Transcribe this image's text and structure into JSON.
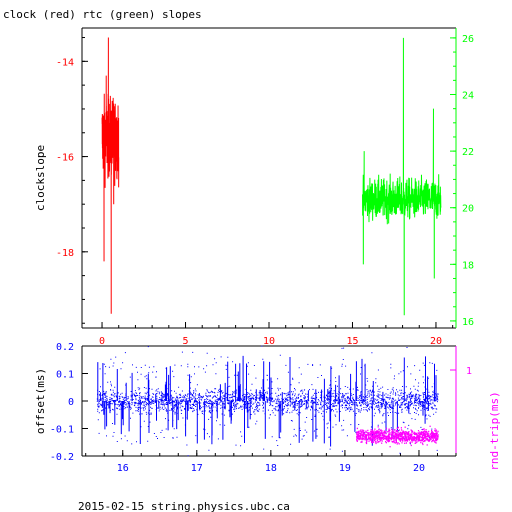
{
  "title": "clock (red) rtc (green) slopes",
  "footer": "2015-02-15 string.physics.ubc.ca",
  "colors": {
    "clock": "#ff0000",
    "rtc": "#00ff00",
    "offset": "#0000ff",
    "rndtrip": "#ff00ff",
    "frame": "#000000"
  },
  "chart_data": [
    {
      "type": "line",
      "title": "clock (red) rtc (green) slopes",
      "ylabel": "clockslope",
      "y2label": "",
      "xlim": [
        -1.2,
        21.2
      ],
      "ylim": [
        -19.6,
        -13.3
      ],
      "y2lim": [
        15.75,
        26.35
      ],
      "x_ticks": [
        "0",
        "5",
        "10",
        "15",
        "20"
      ],
      "y_ticks": [
        "-14",
        "-16",
        "-18"
      ],
      "y2_ticks": [
        "16",
        "18",
        "20",
        "22",
        "24",
        "26"
      ],
      "grid": false,
      "series": [
        {
          "name": "clock",
          "axis": "left",
          "x_range": [
            0.0,
            1.0
          ],
          "center": -15.6,
          "spread": 0.4,
          "spikes": [
            [
              0.12,
              -18.2
            ],
            [
              0.38,
              -13.5
            ],
            [
              0.55,
              -19.3
            ],
            [
              0.25,
              -14.3
            ],
            [
              0.7,
              -17.0
            ]
          ]
        },
        {
          "name": "rtc",
          "axis": "right",
          "x_range": [
            15.6,
            20.3
          ],
          "center": 20.3,
          "spread": 0.35,
          "spikes": [
            [
              15.65,
              18.0
            ],
            [
              15.7,
              22.0
            ],
            [
              18.05,
              26.0
            ],
            [
              18.1,
              16.2
            ],
            [
              19.85,
              23.5
            ],
            [
              19.9,
              17.5
            ]
          ]
        }
      ]
    },
    {
      "type": "scatter",
      "ylabel": "offset(ms)",
      "y2label": "rnd-trip(ms)",
      "xlim": [
        15.45,
        20.5
      ],
      "ylim": [
        -0.2,
        0.2
      ],
      "x_ticks": [
        "16",
        "17",
        "18",
        "19",
        "20"
      ],
      "y_ticks": [
        "0.2",
        "0.1",
        "0",
        "-0.1",
        "-0.2"
      ],
      "y2_ticks": [
        "1"
      ],
      "grid": false,
      "series": [
        {
          "name": "offset",
          "axis": "left",
          "x_range": [
            15.65,
            20.25
          ],
          "center": 0.0,
          "spread": 0.02
        },
        {
          "name": "rnd-trip",
          "axis": "right",
          "x_range": [
            19.15,
            20.25
          ],
          "center": -0.128,
          "spread": 0.012
        }
      ]
    }
  ]
}
